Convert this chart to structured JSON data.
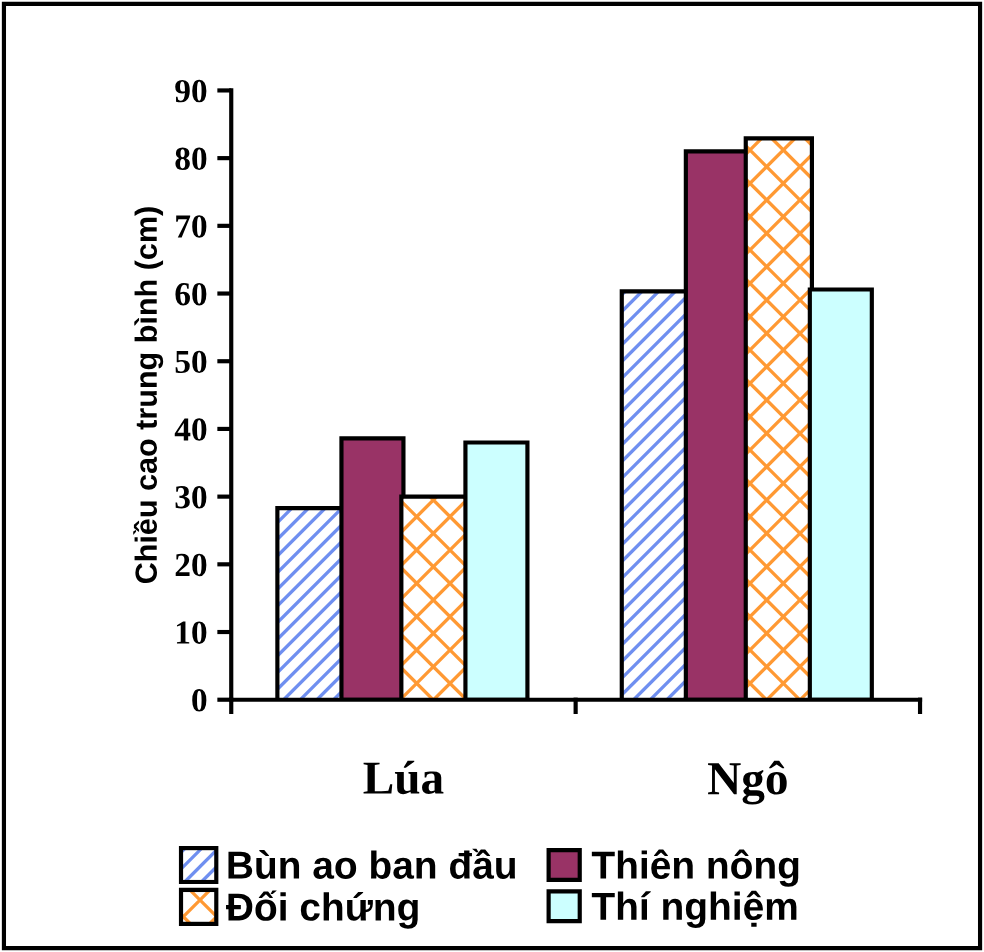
{
  "chart_data": {
    "type": "bar",
    "ylabel": "Chiều cao trung bình (cm)",
    "categories": [
      "Lúa",
      "Ngô"
    ],
    "series": [
      {
        "name": "Bùn ao ban đầu",
        "color": "#6f8ff0",
        "values": [
          28,
          60
        ]
      },
      {
        "name": "Thiên nông",
        "color": "#993366",
        "values": [
          38.6,
          81
        ]
      },
      {
        "name": "Đối chứng",
        "color": "#ff9933",
        "values": [
          29.7,
          82.6
        ]
      },
      {
        "name": "Thí nghiệm",
        "color": "#ccffff",
        "values": [
          38,
          60.6
        ]
      }
    ],
    "ylim": [
      0,
      90
    ],
    "yticks": [
      0,
      10,
      20,
      30,
      40,
      50,
      60,
      70,
      80,
      90
    ],
    "grid": false,
    "legend": "bottom"
  }
}
